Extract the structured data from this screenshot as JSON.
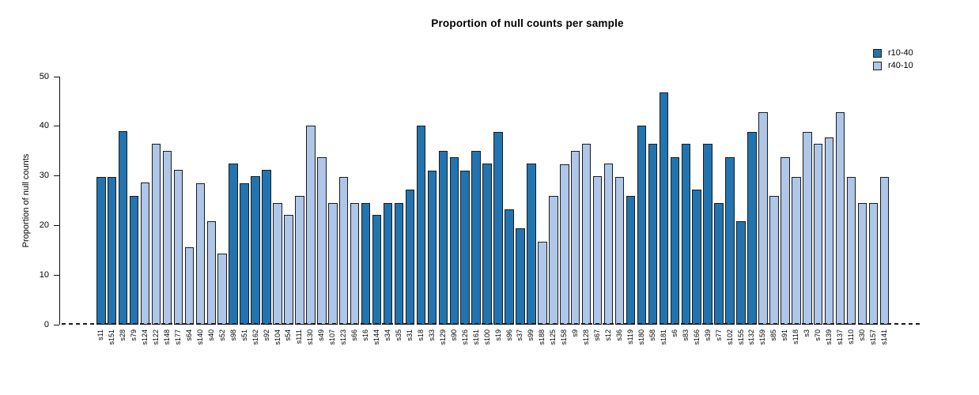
{
  "chart_data": {
    "type": "bar",
    "title": "Proportion of null counts per sample",
    "xlabel": "",
    "ylabel": "Proportion of null counts",
    "ylim": [
      0,
      50
    ],
    "yticks": [
      0,
      10,
      20,
      30,
      40,
      50
    ],
    "grid": false,
    "legend_position": "top-right",
    "bar_edge_color": "#1b1b1b",
    "zero_line_style": "dashed",
    "series": [
      {
        "name": "r10-40",
        "color": "#2274b0"
      },
      {
        "name": "r40-10",
        "color": "#aec6e8"
      }
    ],
    "categories": [
      "s11",
      "s151",
      "s28",
      "s79",
      "s124",
      "s122",
      "s148",
      "s177",
      "s64",
      "s140",
      "s40",
      "s52",
      "s98",
      "s51",
      "s162",
      "s92",
      "s104",
      "s54",
      "s111",
      "s130",
      "s49",
      "s107",
      "s123",
      "s66",
      "s16",
      "s144",
      "s34",
      "s35",
      "s31",
      "s18",
      "s33",
      "s129",
      "s90",
      "s126",
      "s161",
      "s100",
      "s19",
      "s96",
      "s37",
      "s99",
      "s188",
      "s125",
      "s158",
      "s9",
      "s128",
      "s67",
      "s12",
      "s36",
      "s119",
      "s180",
      "s58",
      "s181",
      "s6",
      "s83",
      "s166",
      "s39",
      "s77",
      "s102",
      "s155",
      "s132",
      "s159",
      "s85",
      "s91",
      "s118",
      "s3",
      "s70",
      "s139",
      "s137",
      "s110",
      "s30",
      "s157",
      "s141"
    ],
    "values": [
      29.8,
      29.8,
      39.0,
      26.0,
      28.6,
      36.4,
      35.0,
      31.2,
      15.6,
      28.5,
      20.8,
      14.3,
      32.5,
      28.5,
      29.9,
      31.2,
      24.5,
      22.1,
      26.0,
      40.2,
      33.8,
      24.5,
      29.8,
      24.5,
      24.5,
      22.1,
      24.5,
      24.5,
      27.3,
      40.1,
      31.1,
      35.0,
      33.7,
      31.1,
      35.0,
      32.5,
      38.9,
      23.3,
      19.5,
      32.5,
      16.8,
      26.0,
      32.4,
      35.0,
      36.4,
      29.9,
      32.5,
      29.8,
      26.0,
      40.1,
      36.4,
      46.8,
      33.7,
      36.4,
      27.2,
      36.4,
      24.6,
      33.7,
      20.8,
      38.9,
      42.9,
      26.0,
      33.7,
      29.8,
      38.9,
      36.4,
      37.7,
      42.9,
      29.8,
      24.5,
      24.5,
      29.8
    ],
    "groups": [
      "r10-40",
      "r10-40",
      "r10-40",
      "r10-40",
      "r40-10",
      "r40-10",
      "r40-10",
      "r40-10",
      "r40-10",
      "r40-10",
      "r40-10",
      "r40-10",
      "r10-40",
      "r10-40",
      "r10-40",
      "r10-40",
      "r40-10",
      "r40-10",
      "r40-10",
      "r40-10",
      "r40-10",
      "r40-10",
      "r40-10",
      "r40-10",
      "r10-40",
      "r10-40",
      "r10-40",
      "r10-40",
      "r10-40",
      "r10-40",
      "r10-40",
      "r10-40",
      "r10-40",
      "r10-40",
      "r10-40",
      "r10-40",
      "r10-40",
      "r10-40",
      "r10-40",
      "r10-40",
      "r40-10",
      "r40-10",
      "r40-10",
      "r40-10",
      "r40-10",
      "r40-10",
      "r40-10",
      "r40-10",
      "r10-40",
      "r10-40",
      "r10-40",
      "r10-40",
      "r10-40",
      "r10-40",
      "r10-40",
      "r10-40",
      "r10-40",
      "r10-40",
      "r10-40",
      "r10-40",
      "r40-10",
      "r40-10",
      "r40-10",
      "r40-10",
      "r40-10",
      "r40-10",
      "r40-10",
      "r40-10",
      "r40-10",
      "r40-10",
      "r40-10",
      "r40-10"
    ]
  }
}
